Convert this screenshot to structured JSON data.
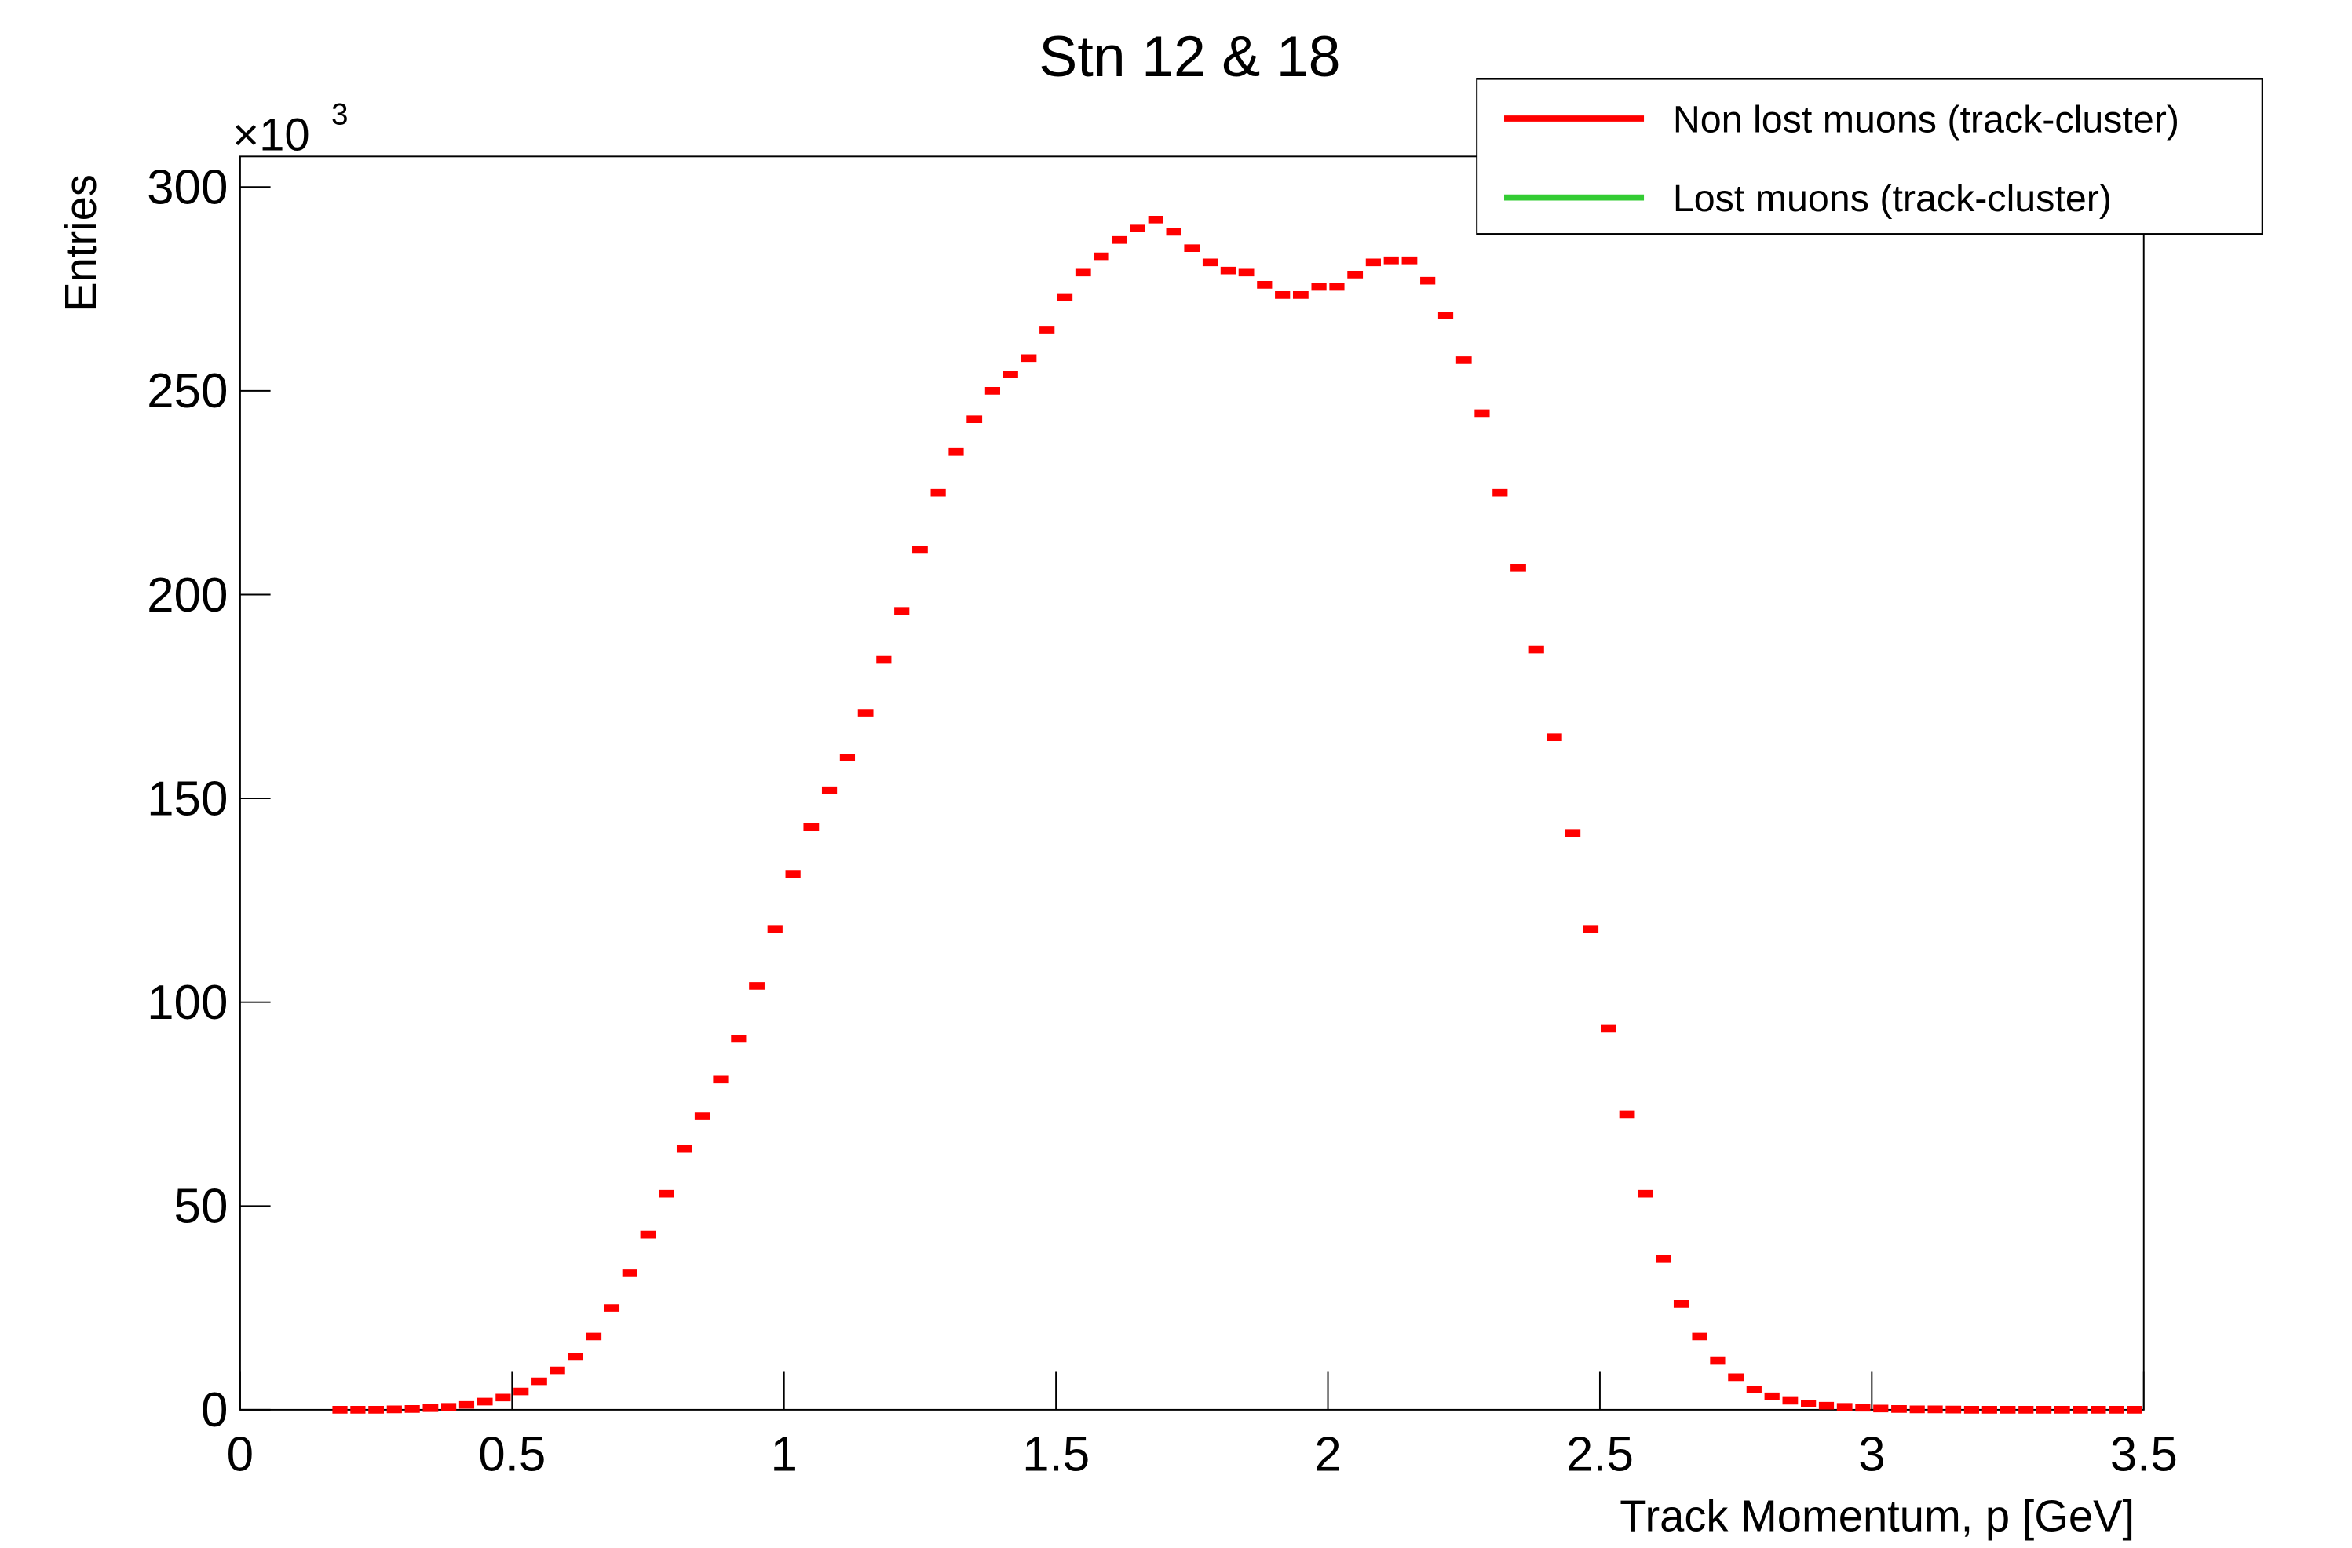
{
  "chart_data": {
    "type": "histogram",
    "title": "Stn 12 & 18",
    "x_label": "Track Momentum, p [GeV]",
    "y_label": "Entries",
    "y_multiplier_base": "×10",
    "y_multiplier_exponent": "3",
    "bins": [
      0.167,
      0.2,
      0.233,
      0.267,
      0.3,
      0.333,
      0.367,
      0.4,
      0.433,
      0.467,
      0.5,
      0.533,
      0.567,
      0.6,
      0.633,
      0.667,
      0.7,
      0.733,
      0.767,
      0.8,
      0.833,
      0.867,
      0.9,
      0.933,
      0.967,
      1.0,
      1.033,
      1.067,
      1.1,
      1.133,
      1.167,
      1.2,
      1.233,
      1.267,
      1.3,
      1.333,
      1.367,
      1.4,
      1.433,
      1.467,
      1.5,
      1.533,
      1.567,
      1.6,
      1.633,
      1.667,
      1.7,
      1.733,
      1.767,
      1.8,
      1.833,
      1.867,
      1.9,
      1.933,
      1.967,
      2.0,
      2.033,
      2.067,
      2.1,
      2.133,
      2.167,
      2.2,
      2.233,
      2.267,
      2.3,
      2.333,
      2.367,
      2.4,
      2.433,
      2.467,
      2.5,
      2.533,
      2.567,
      2.6,
      2.633,
      2.667,
      2.7,
      2.733,
      2.767,
      2.8,
      2.833,
      2.867,
      2.9,
      2.933,
      2.967,
      3.0,
      3.033,
      3.067,
      3.1,
      3.133,
      3.167,
      3.2,
      3.233,
      3.267,
      3.3,
      3.333,
      3.367,
      3.4,
      3.433,
      3.467,
      3.5
    ],
    "series": [
      {
        "name": "Non lost muons (track-cluster)",
        "color": "#ff0000",
        "values": [
          0,
          0,
          0,
          0.1,
          0.2,
          0.4,
          0.7,
          1.2,
          2,
          3,
          4.5,
          7,
          9.7,
          13,
          18,
          25,
          33.5,
          43,
          53,
          64,
          72,
          81,
          91,
          104,
          118,
          131.5,
          143,
          152,
          160,
          171,
          184,
          196,
          211,
          225,
          235,
          243,
          250,
          254,
          258,
          265,
          273,
          279,
          283,
          287,
          290,
          292,
          289,
          285,
          281.5,
          279.5,
          279,
          276,
          273.5,
          273.5,
          275.5,
          275.5,
          278.5,
          281.5,
          282,
          282,
          277,
          268.5,
          257.5,
          244.5,
          225,
          206.5,
          186.5,
          165,
          141.5,
          118,
          93.5,
          72.5,
          53,
          37,
          26,
          18,
          12,
          8,
          5,
          3.3,
          2.2,
          1.5,
          1,
          0.7,
          0.5,
          0.3,
          0.2,
          0.1,
          0.1,
          0.05,
          0,
          0,
          0,
          0,
          0,
          0,
          0,
          0,
          0,
          0
        ]
      },
      {
        "name": "Lost muons (track-cluster)",
        "color": "#33cc33"
      }
    ],
    "xlim": [
      0,
      3.5
    ],
    "xticks": [
      0,
      0.5,
      1,
      1.5,
      2,
      2.5,
      3,
      3.5
    ],
    "ylim": [
      0,
      307.5
    ],
    "yticks": [
      0,
      50,
      100,
      150,
      200,
      250,
      300
    ],
    "legend": "top-right"
  }
}
